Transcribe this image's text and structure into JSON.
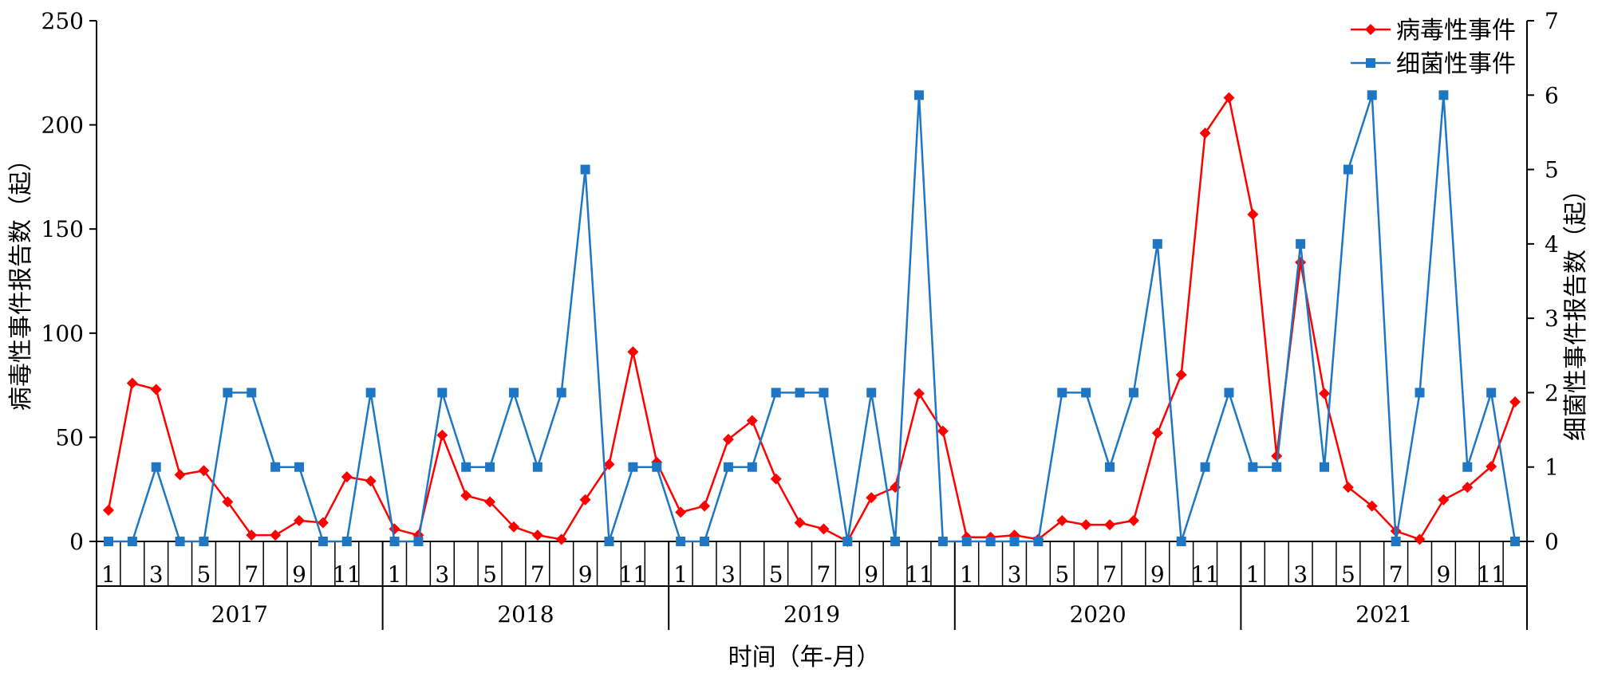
{
  "chart_data": {
    "type": "line",
    "xlabel": "时间（年-月）",
    "ylabel_left": "病毒性事件报告数（起）",
    "ylabel_right": "细菌性事件报告数（起）",
    "ylim_left": [
      0,
      250
    ],
    "ylim_right": [
      0,
      7
    ],
    "yticks_left": [
      "0",
      "50",
      "100",
      "150",
      "200",
      "250"
    ],
    "yticks_right": [
      "0",
      "1",
      "2",
      "3",
      "4",
      "5",
      "6",
      "7"
    ],
    "years": [
      "2017",
      "2018",
      "2019",
      "2020",
      "2021"
    ],
    "month_ticks": [
      "1",
      "3",
      "5",
      "7",
      "9",
      "11"
    ],
    "legend_position": "top-right",
    "grid": false,
    "series": [
      {
        "name": "病毒性事件",
        "axis": "left",
        "color": "#ff0000",
        "marker": "diamond",
        "values": [
          15,
          76,
          73,
          32,
          34,
          19,
          3,
          3,
          10,
          9,
          31,
          29,
          6,
          3,
          51,
          22,
          19,
          7,
          3,
          1,
          20,
          37,
          91,
          38,
          14,
          17,
          49,
          58,
          30,
          9,
          6,
          0,
          21,
          26,
          71,
          53,
          2,
          2,
          3,
          1,
          10,
          8,
          8,
          10,
          52,
          80,
          196,
          213,
          157,
          41,
          134,
          71,
          26,
          17,
          5,
          1,
          20,
          26,
          36,
          67
        ]
      },
      {
        "name": "细菌性事件",
        "axis": "right",
        "color": "#1f77c4",
        "marker": "square",
        "values": [
          0,
          0,
          1,
          0,
          0,
          2,
          2,
          1,
          1,
          0,
          0,
          2,
          0,
          0,
          2,
          1,
          1,
          2,
          1,
          2,
          5,
          0,
          1,
          1,
          0,
          0,
          1,
          1,
          2,
          2,
          2,
          0,
          2,
          0,
          6,
          0,
          0,
          0,
          0,
          0,
          2,
          2,
          1,
          2,
          4,
          0,
          1,
          2,
          1,
          1,
          4,
          1,
          5,
          6,
          0,
          2,
          6,
          1,
          2,
          0
        ]
      }
    ]
  }
}
